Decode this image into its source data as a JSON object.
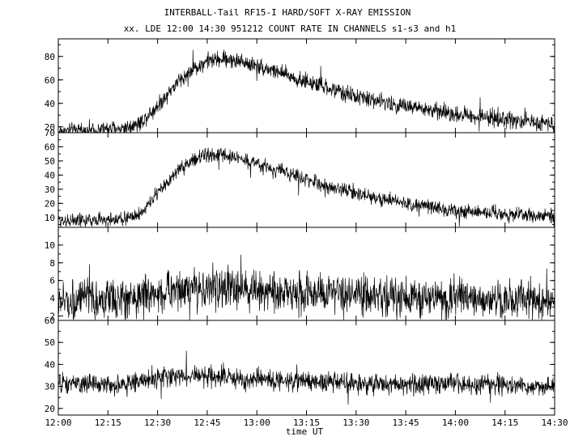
{
  "chart_data": [
    {
      "type": "line",
      "title": "INTERBALL-Tail RF15-I HARD/SOFT X-RAY EMISSION",
      "subtitle": "xx. LDE 12:00 14:30 951212  COUNT RATE IN CHANNELS s1-s3 and h1",
      "xlabel": "time UT",
      "x_ticks": [
        "12:00",
        "12:15",
        "12:30",
        "12:45",
        "13:00",
        "13:15",
        "13:30",
        "13:45",
        "14:00",
        "14:15",
        "14:30"
      ],
      "xlim": [
        0,
        150
      ],
      "panels": [
        {
          "ylim": [
            15,
            95
          ],
          "y_ticks": [
            20,
            40,
            60,
            80
          ],
          "y_extra_label": "",
          "x": [
            0,
            10,
            20,
            25,
            30,
            35,
            40,
            45,
            50,
            55,
            60,
            65,
            70,
            80,
            90,
            100,
            110,
            120,
            130,
            140,
            150
          ],
          "y": [
            16,
            17,
            19,
            24,
            38,
            55,
            68,
            76,
            78,
            76,
            72,
            68,
            63,
            54,
            46,
            40,
            35,
            31,
            28,
            25,
            23
          ],
          "noise": 7
        },
        {
          "ylim": [
            3,
            70
          ],
          "y_ticks": [
            10,
            20,
            30,
            40,
            50,
            60
          ],
          "y_extra_label": "70",
          "x": [
            0,
            10,
            20,
            25,
            30,
            35,
            40,
            45,
            50,
            55,
            60,
            65,
            70,
            80,
            90,
            100,
            110,
            120,
            130,
            140,
            150
          ],
          "y": [
            8,
            8,
            9,
            13,
            27,
            40,
            50,
            54,
            54,
            52,
            48,
            44,
            41,
            33,
            27,
            22,
            18,
            15,
            13,
            12,
            11
          ],
          "noise": 5
        },
        {
          "ylim": [
            1.5,
            12
          ],
          "y_ticks": [
            2,
            4,
            6,
            8,
            10
          ],
          "y_extra_label": "",
          "x": [
            0,
            20,
            30,
            40,
            50,
            60,
            70,
            80,
            100,
            120,
            150
          ],
          "y": [
            3.6,
            3.9,
            4.6,
            5.1,
            5.2,
            4.9,
            4.6,
            4.4,
            4.1,
            3.9,
            3.7
          ],
          "noise": 2.2
        },
        {
          "ylim": [
            17,
            60
          ],
          "y_ticks": [
            20,
            30,
            40,
            50
          ],
          "y_extra_label": "60",
          "x": [
            0,
            20,
            30,
            40,
            50,
            60,
            80,
            100,
            120,
            150
          ],
          "y": [
            31,
            31,
            34,
            35,
            34,
            33,
            32,
            31,
            31,
            30
          ],
          "noise": 4.5
        }
      ]
    }
  ]
}
